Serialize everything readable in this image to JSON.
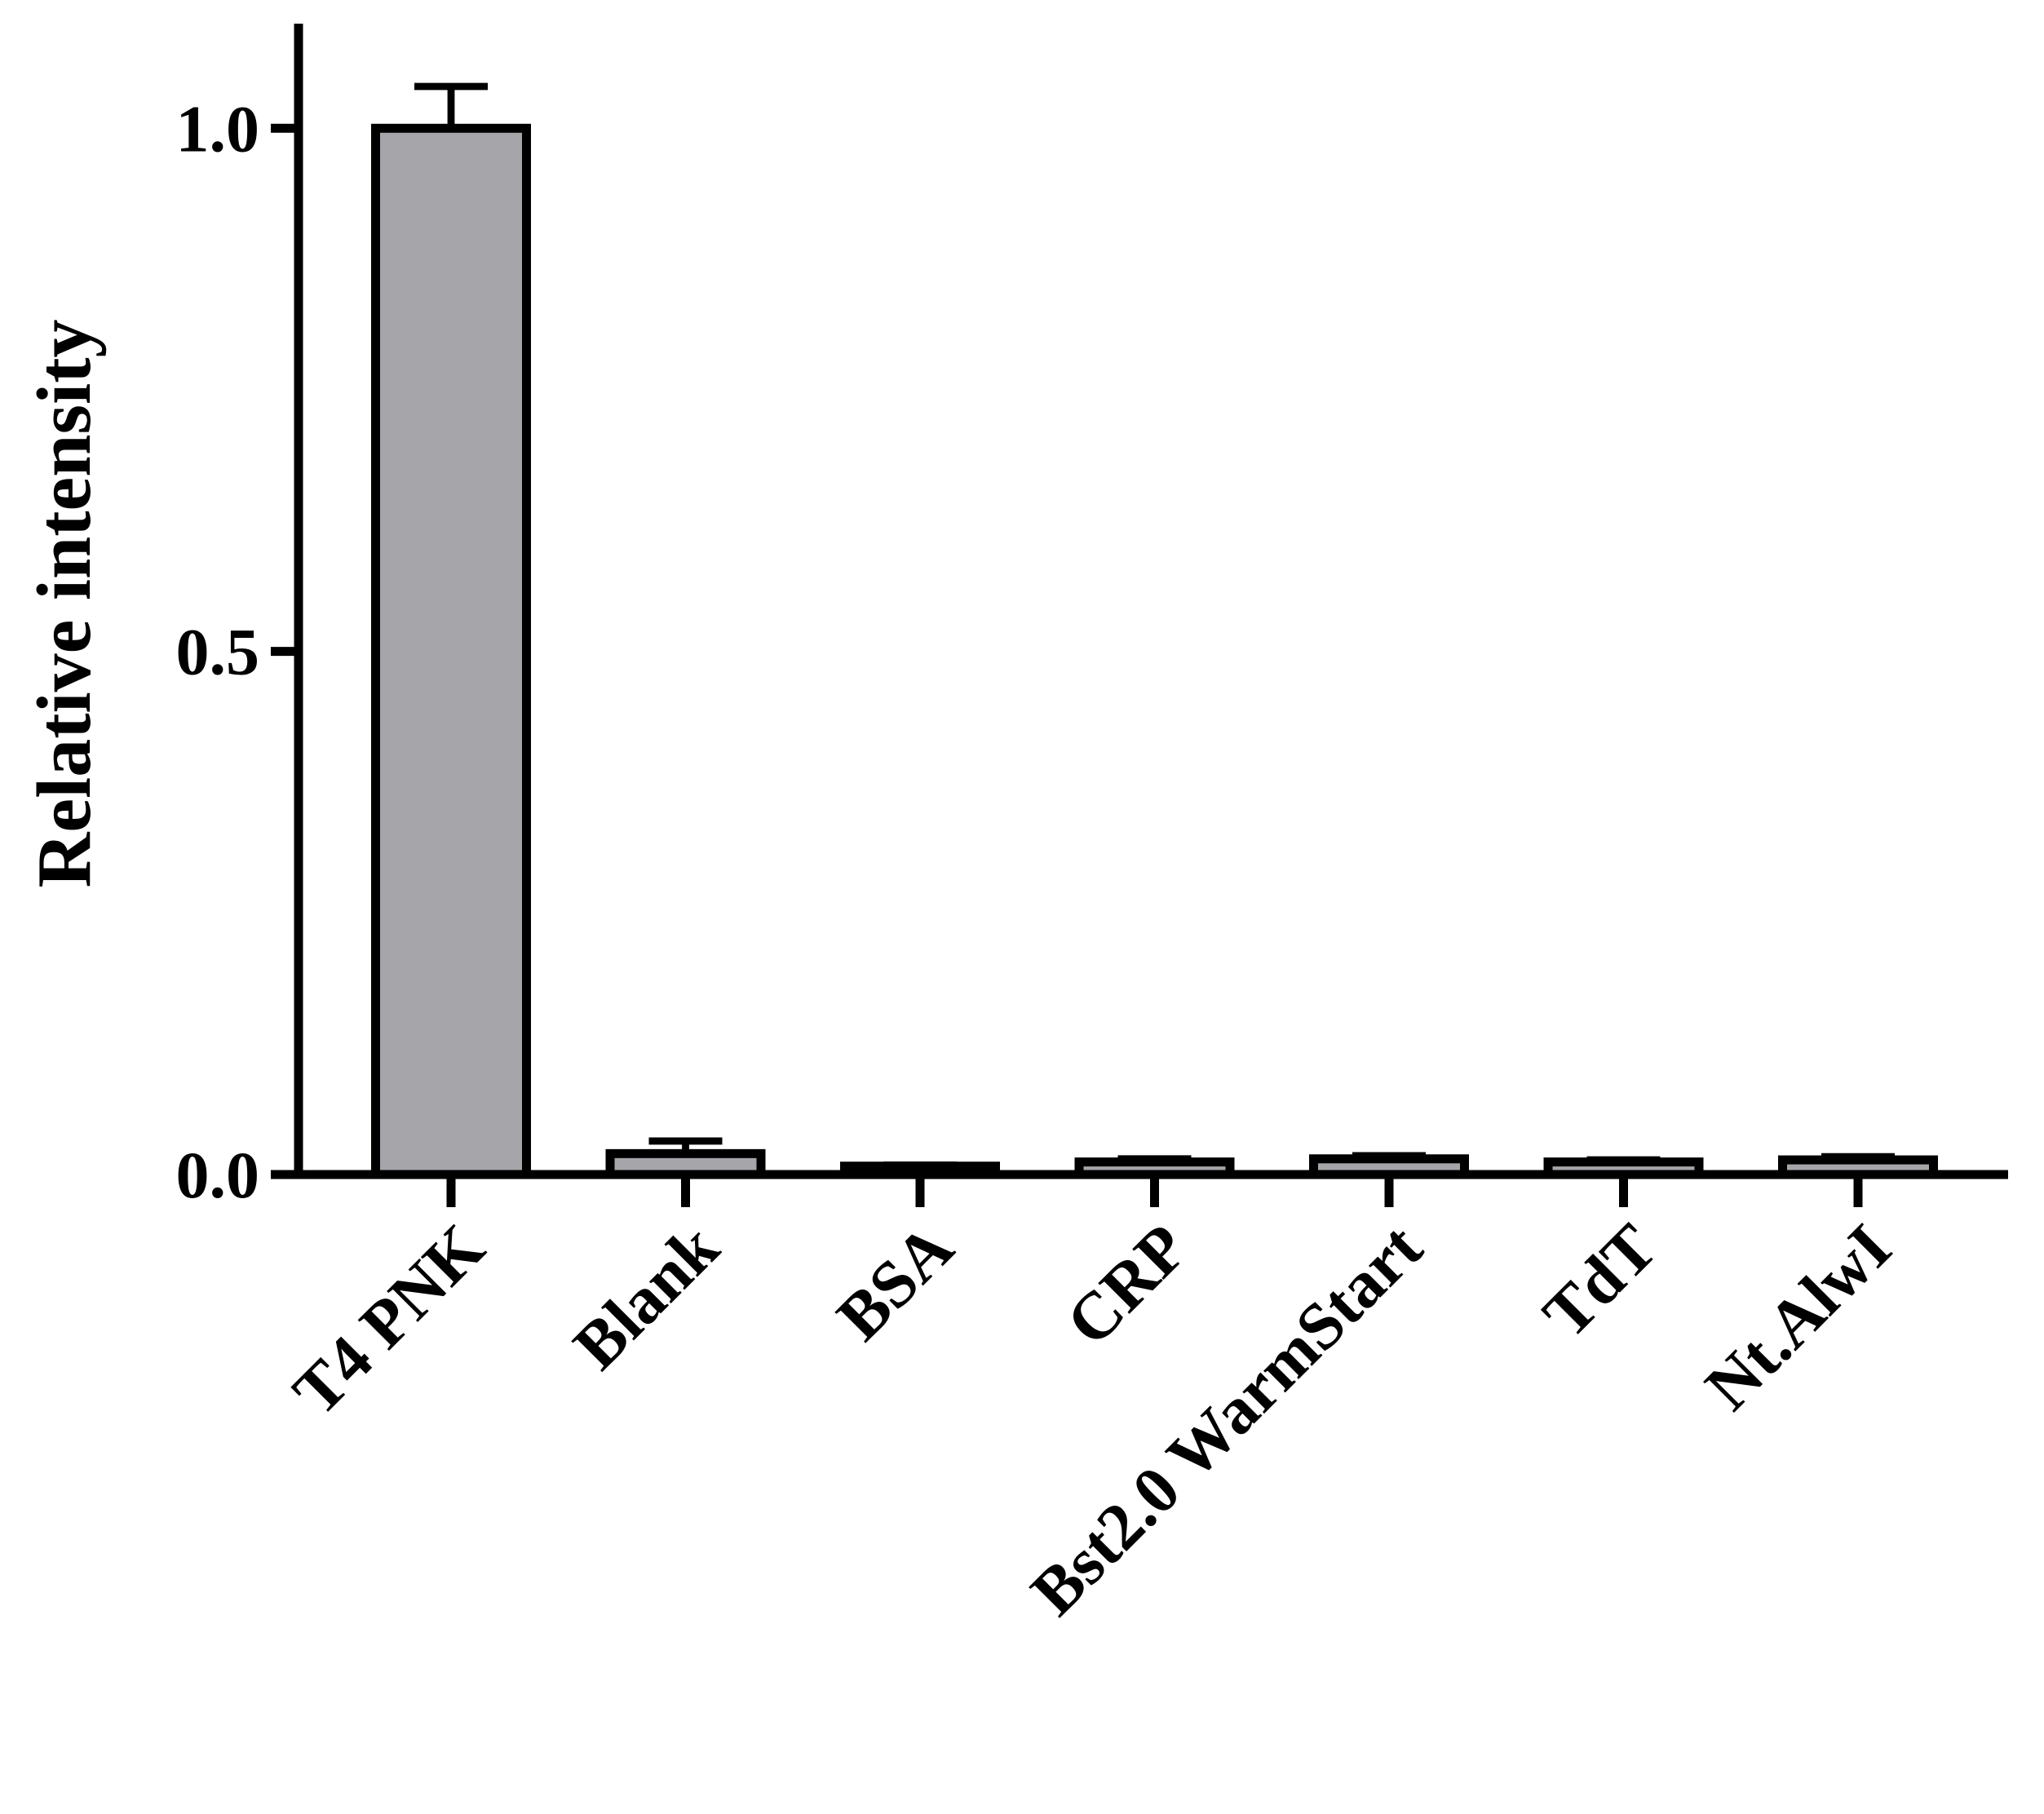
{
  "chart_data": {
    "type": "bar",
    "y_label": "Relative intensity",
    "categories": [
      "T4 PNK",
      "Blank",
      "BSA",
      "CRP",
      "Bst2.0 WarmStart",
      "TdT",
      "Nt.AlwI"
    ],
    "values": [
      1.0,
      0.02,
      0.008,
      0.012,
      0.015,
      0.012,
      0.014
    ],
    "errors": [
      0.04,
      0.012,
      0.001,
      0.003,
      0.003,
      0.002,
      0.003
    ],
    "color": "#a6a5aa",
    "ylim": [
      0,
      1.1
    ],
    "yticks": [
      {
        "value": 0,
        "label": "0.0"
      },
      {
        "value": 0.5,
        "label": "0.5"
      },
      {
        "value": 1,
        "label": "1.0"
      }
    ],
    "grid": false
  }
}
